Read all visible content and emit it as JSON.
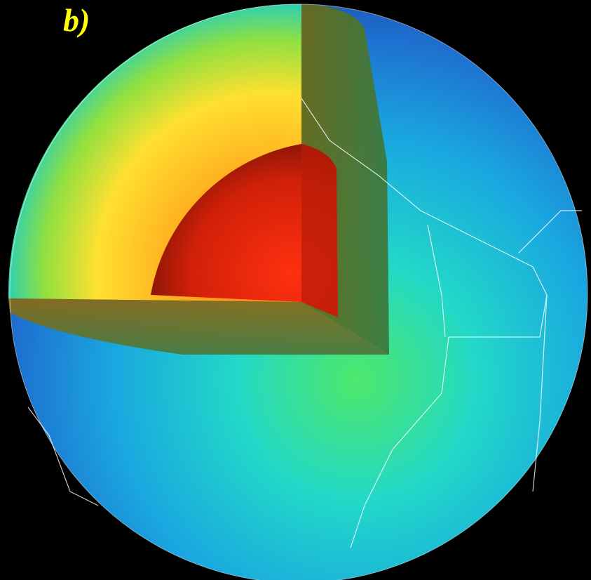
{
  "panel_label": "b)"
}
